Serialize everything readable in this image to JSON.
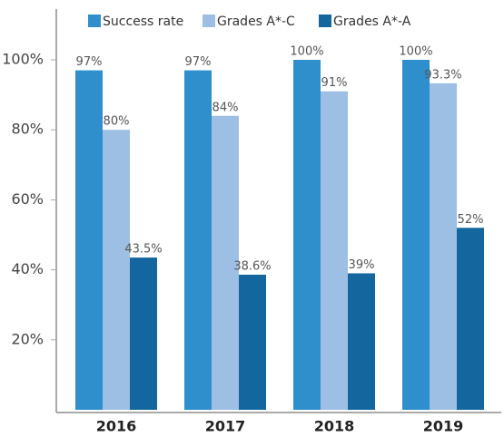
{
  "chart_data": {
    "type": "bar",
    "categories": [
      "2016",
      "2017",
      "2018",
      "2019"
    ],
    "series": [
      {
        "name": "Success rate",
        "color": "#2e8fcc",
        "values": [
          97,
          97,
          100,
          100
        ],
        "value_labels": [
          "97%",
          "97%",
          "100%",
          "100%"
        ]
      },
      {
        "name": "Grades A*-C",
        "color": "#9dbfe3",
        "values": [
          80,
          84,
          91,
          93.3
        ],
        "value_labels": [
          "80%",
          "84%",
          "91%",
          "93.3%"
        ]
      },
      {
        "name": "Grades A*-A",
        "color": "#13679e",
        "values": [
          43.5,
          38.6,
          39,
          52
        ],
        "value_labels": [
          "43.5%",
          "38.6%",
          "39%",
          "52%"
        ]
      }
    ],
    "ylim": [
      0,
      100
    ],
    "yticks": [
      {
        "value": 20,
        "label": "20%"
      },
      {
        "value": 40,
        "label": "40%"
      },
      {
        "value": 60,
        "label": "60%"
      },
      {
        "value": 80,
        "label": "80%"
      },
      {
        "value": 100,
        "label": "100%"
      }
    ],
    "legend": "top"
  }
}
